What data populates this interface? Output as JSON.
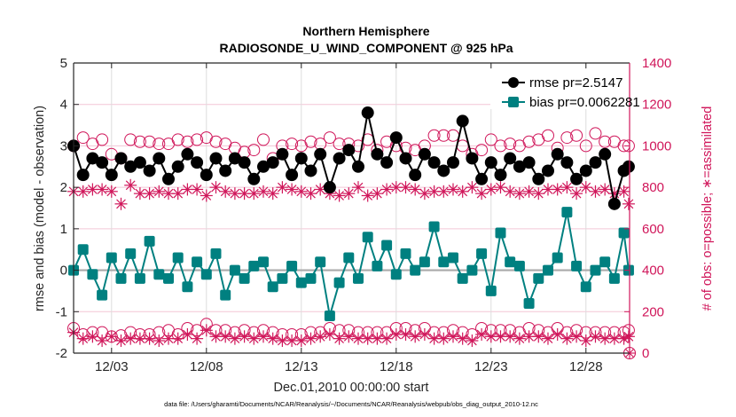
{
  "chart_data": {
    "type": "line",
    "title": "Northern Hemisphere",
    "subtitle": "RADIOSONDE_U_WIND_COMPONENT @ 925 hPa",
    "xlabel": "Dec.01,2010 00:00:00 start",
    "ylabel": "rmse and bias (model - observation)",
    "y2label": "# of obs: o=possible; ∗=assimilated",
    "footnote": "data file: /Users/gharamti/Documents/NCAR/Reanalysis/~/Documents/NCAR/Reanalysis/webpub/obs_diag_output_2010-12.nc",
    "xlim": [
      0,
      29.3
    ],
    "ylim": [
      -2,
      5
    ],
    "y2lim": [
      0,
      1400
    ],
    "grid": true,
    "legend_position": "top-right",
    "x_ticks": [
      {
        "day": 2,
        "label": "12/03"
      },
      {
        "day": 7,
        "label": "12/08"
      },
      {
        "day": 12,
        "label": "12/13"
      },
      {
        "day": 17,
        "label": "12/18"
      },
      {
        "day": 22,
        "label": "12/23"
      },
      {
        "day": 27,
        "label": "12/28"
      }
    ],
    "y_ticks": [
      "5",
      "4",
      "3",
      "2",
      "1",
      "0",
      "-1",
      "-2"
    ],
    "y2_ticks": [
      "1400",
      "1200",
      "1000",
      "800",
      "600",
      "400",
      "200",
      "0"
    ],
    "x_days": [
      0,
      0.5,
      1,
      1.5,
      2,
      2.5,
      3,
      3.5,
      4,
      4.5,
      5,
      5.5,
      6,
      6.5,
      7,
      7.5,
      8,
      8.5,
      9,
      9.5,
      10,
      10.5,
      11,
      11.5,
      12,
      12.5,
      13,
      13.5,
      14,
      14.5,
      15,
      15.5,
      16,
      16.5,
      17,
      17.5,
      18,
      18.5,
      19,
      19.5,
      20,
      20.5,
      21,
      21.5,
      22,
      22.5,
      23,
      23.5,
      24,
      24.5,
      25,
      25.5,
      26,
      26.5,
      27,
      27.5,
      28,
      28.5,
      29,
      29.25
    ],
    "series": [
      {
        "name": "rmse pr=2.5147",
        "axis": "left",
        "color": "#000000",
        "marker": "circle",
        "values": [
          3.0,
          2.3,
          2.7,
          2.6,
          2.3,
          2.7,
          2.5,
          2.6,
          2.4,
          2.7,
          2.2,
          2.5,
          2.8,
          2.6,
          2.3,
          2.7,
          2.4,
          2.7,
          2.6,
          2.2,
          2.5,
          2.6,
          2.8,
          2.3,
          2.7,
          2.4,
          2.8,
          2.0,
          2.7,
          2.9,
          2.5,
          3.8,
          2.8,
          2.6,
          3.2,
          2.7,
          2.3,
          2.8,
          2.6,
          2.4,
          2.6,
          3.6,
          2.7,
          2.2,
          2.6,
          2.3,
          2.7,
          2.5,
          2.6,
          2.2,
          2.4,
          2.8,
          2.6,
          2.2,
          2.4,
          2.6,
          2.8,
          1.6,
          2.4,
          2.5
        ]
      },
      {
        "name": "bias pr=0.0062281",
        "axis": "left",
        "color": "#008080",
        "marker": "square",
        "values": [
          0.0,
          0.5,
          -0.1,
          -0.6,
          0.3,
          -0.2,
          0.4,
          -0.2,
          0.7,
          -0.1,
          -0.2,
          0.3,
          -0.4,
          0.2,
          -0.1,
          0.4,
          -0.6,
          0.0,
          -0.2,
          0.1,
          0.2,
          -0.4,
          -0.2,
          0.1,
          -0.3,
          -0.2,
          0.2,
          -1.1,
          -0.3,
          0.3,
          -0.2,
          0.8,
          0.1,
          0.6,
          -0.1,
          0.4,
          0.0,
          0.2,
          1.05,
          0.2,
          0.3,
          -0.2,
          0.0,
          0.4,
          -0.5,
          0.9,
          0.2,
          0.1,
          -0.8,
          -0.2,
          0.0,
          0.3,
          1.4,
          0.1,
          -0.4,
          0.0,
          0.2,
          -0.2,
          0.9,
          0.0
        ]
      },
      {
        "name": "possible obs (mid-level)",
        "axis": "right",
        "color": "#d0165a",
        "marker": "open-circle",
        "values": [
          1000,
          1040,
          1010,
          1030,
          960,
          940,
          1030,
          1020,
          1020,
          1010,
          1010,
          1030,
          1020,
          1030,
          1040,
          1020,
          1010,
          990,
          970,
          980,
          1030,
          940,
          1000,
          1010,
          1000,
          1020,
          1010,
          1040,
          1010,
          1010,
          1000,
          1030,
          980,
          1020,
          1000,
          990,
          980,
          1000,
          1050,
          1050,
          1050,
          1000,
          960,
          980,
          1030,
          1000,
          1010,
          1000,
          1020,
          1030,
          1050,
          990,
          1040,
          1050,
          1000,
          1060,
          1020,
          1020,
          1000,
          1000
        ]
      },
      {
        "name": "assimilated obs (mid-level)",
        "axis": "right",
        "color": "#d0165a",
        "marker": "asterisk",
        "values": [
          780,
          780,
          790,
          790,
          780,
          720,
          810,
          770,
          770,
          780,
          770,
          770,
          790,
          790,
          760,
          800,
          780,
          770,
          770,
          770,
          780,
          770,
          800,
          790,
          780,
          770,
          790,
          770,
          760,
          770,
          800,
          760,
          770,
          790,
          800,
          800,
          790,
          770,
          780,
          780,
          790,
          780,
          800,
          770,
          790,
          800,
          780,
          770,
          780,
          770,
          790,
          790,
          800,
          770,
          800,
          780,
          790,
          770,
          780,
          720
        ]
      },
      {
        "name": "possible obs (low)",
        "axis": "right",
        "color": "#d0165a",
        "marker": "open-circle",
        "values": [
          120,
          90,
          100,
          100,
          80,
          85,
          100,
          90,
          90,
          100,
          110,
          90,
          120,
          110,
          140,
          110,
          110,
          100,
          110,
          100,
          110,
          100,
          90,
          90,
          90,
          100,
          100,
          120,
          110,
          110,
          100,
          100,
          100,
          100,
          120,
          120,
          110,
          120,
          100,
          100,
          110,
          100,
          90,
          120,
          110,
          110,
          110,
          100,
          120,
          110,
          100,
          120,
          100,
          110,
          100,
          100,
          100,
          100,
          100,
          110
        ]
      },
      {
        "name": "assimilated obs (low)",
        "axis": "right",
        "color": "#d0165a",
        "marker": "asterisk",
        "values": [
          100,
          70,
          80,
          60,
          80,
          60,
          70,
          70,
          70,
          60,
          70,
          70,
          90,
          70,
          110,
          80,
          80,
          70,
          80,
          70,
          80,
          70,
          60,
          60,
          60,
          70,
          80,
          90,
          70,
          80,
          70,
          70,
          70,
          70,
          90,
          90,
          80,
          90,
          70,
          70,
          80,
          70,
          60,
          90,
          80,
          80,
          80,
          70,
          80,
          80,
          70,
          90,
          70,
          80,
          60,
          80,
          70,
          70,
          70,
          80
        ]
      }
    ]
  }
}
